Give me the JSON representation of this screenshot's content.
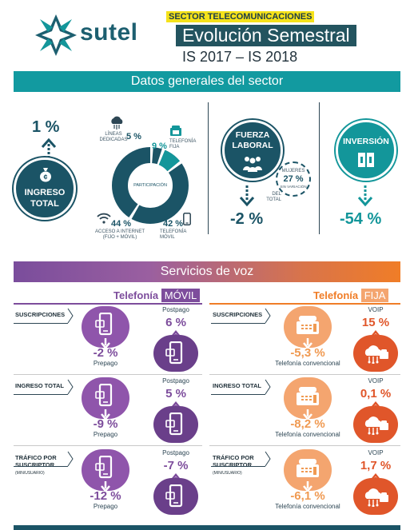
{
  "header": {
    "logo_text": "sutel",
    "sector": "SECTOR TELECOMUNICACIONES",
    "title": "Evolución Semestral",
    "period": "IS 2017 – IS 2018"
  },
  "general": {
    "bar": "Datos generales del sector",
    "ingreso": {
      "label": "INGRESO TOTAL",
      "value": "1 %"
    },
    "participacion": {
      "center": "PARTICIPACIÓN",
      "lineas": {
        "label": "LÍNEAS DEDICADAS",
        "value": "5 %"
      },
      "fija": {
        "label": "TELEFONÍA FIJA",
        "value": "9 %"
      },
      "internet": {
        "label": "ACCESO A INTERNET (FIJO + MÓVIL)",
        "value": "44 %"
      },
      "movil": {
        "label": "TELEFONÍA MÓVIL",
        "value": "42 %"
      }
    },
    "fuerza": {
      "label": "FUERZA LABORAL",
      "value": "-2 %",
      "mujeres_label": "MUJERES",
      "mujeres_value": "27 %",
      "mujeres_sub": "SIN VARIACIÓN",
      "del_total": "DEL TOTAL"
    },
    "inversion": {
      "label": "INVERSIÓN",
      "value": "-54 %"
    }
  },
  "voz": {
    "bar": "Servicios de voz",
    "movil_head": "Telefonía",
    "movil_tag": "MÓVIL",
    "fija_head": "Telefonía",
    "fija_tag": "FIJA",
    "rows": [
      {
        "label": "SUSCRIPCIONES",
        "sub": "",
        "prepago": "-2 %",
        "prepago_label": "Prepago",
        "postpago": "6 %",
        "postpago_label": "Postpago",
        "convencional": "-5,3 %",
        "convencional_label": "Telefonía convencional",
        "voip": "15 %",
        "voip_label": "VOIP"
      },
      {
        "label": "INGRESO TOTAL",
        "sub": "",
        "prepago": "-9 %",
        "prepago_label": "Prepago",
        "postpago": "5 %",
        "postpago_label": "Postpago",
        "convencional": "-8,2 %",
        "convencional_label": "Telefonía convencional",
        "voip": "0,1 %",
        "voip_label": "VOIP"
      },
      {
        "label": "TRÁFICO POR SUSCRIPTOR",
        "sub": "(MIN/USUARIO)",
        "prepago": "-12 %",
        "prepago_label": "Prepago",
        "postpago": "-7 %",
        "postpago_label": "Postpago",
        "convencional": "-6,1 %",
        "convencional_label": "Telefonía convencional",
        "voip": "1,7 %",
        "voip_label": "VOIP"
      }
    ]
  },
  "colors": {
    "teal": "#129aa0",
    "dark_teal": "#1b5466",
    "purple": "#7d4d9c",
    "orange": "#e0562a",
    "peach": "#f4a56f",
    "yellow": "#f5e21a"
  }
}
